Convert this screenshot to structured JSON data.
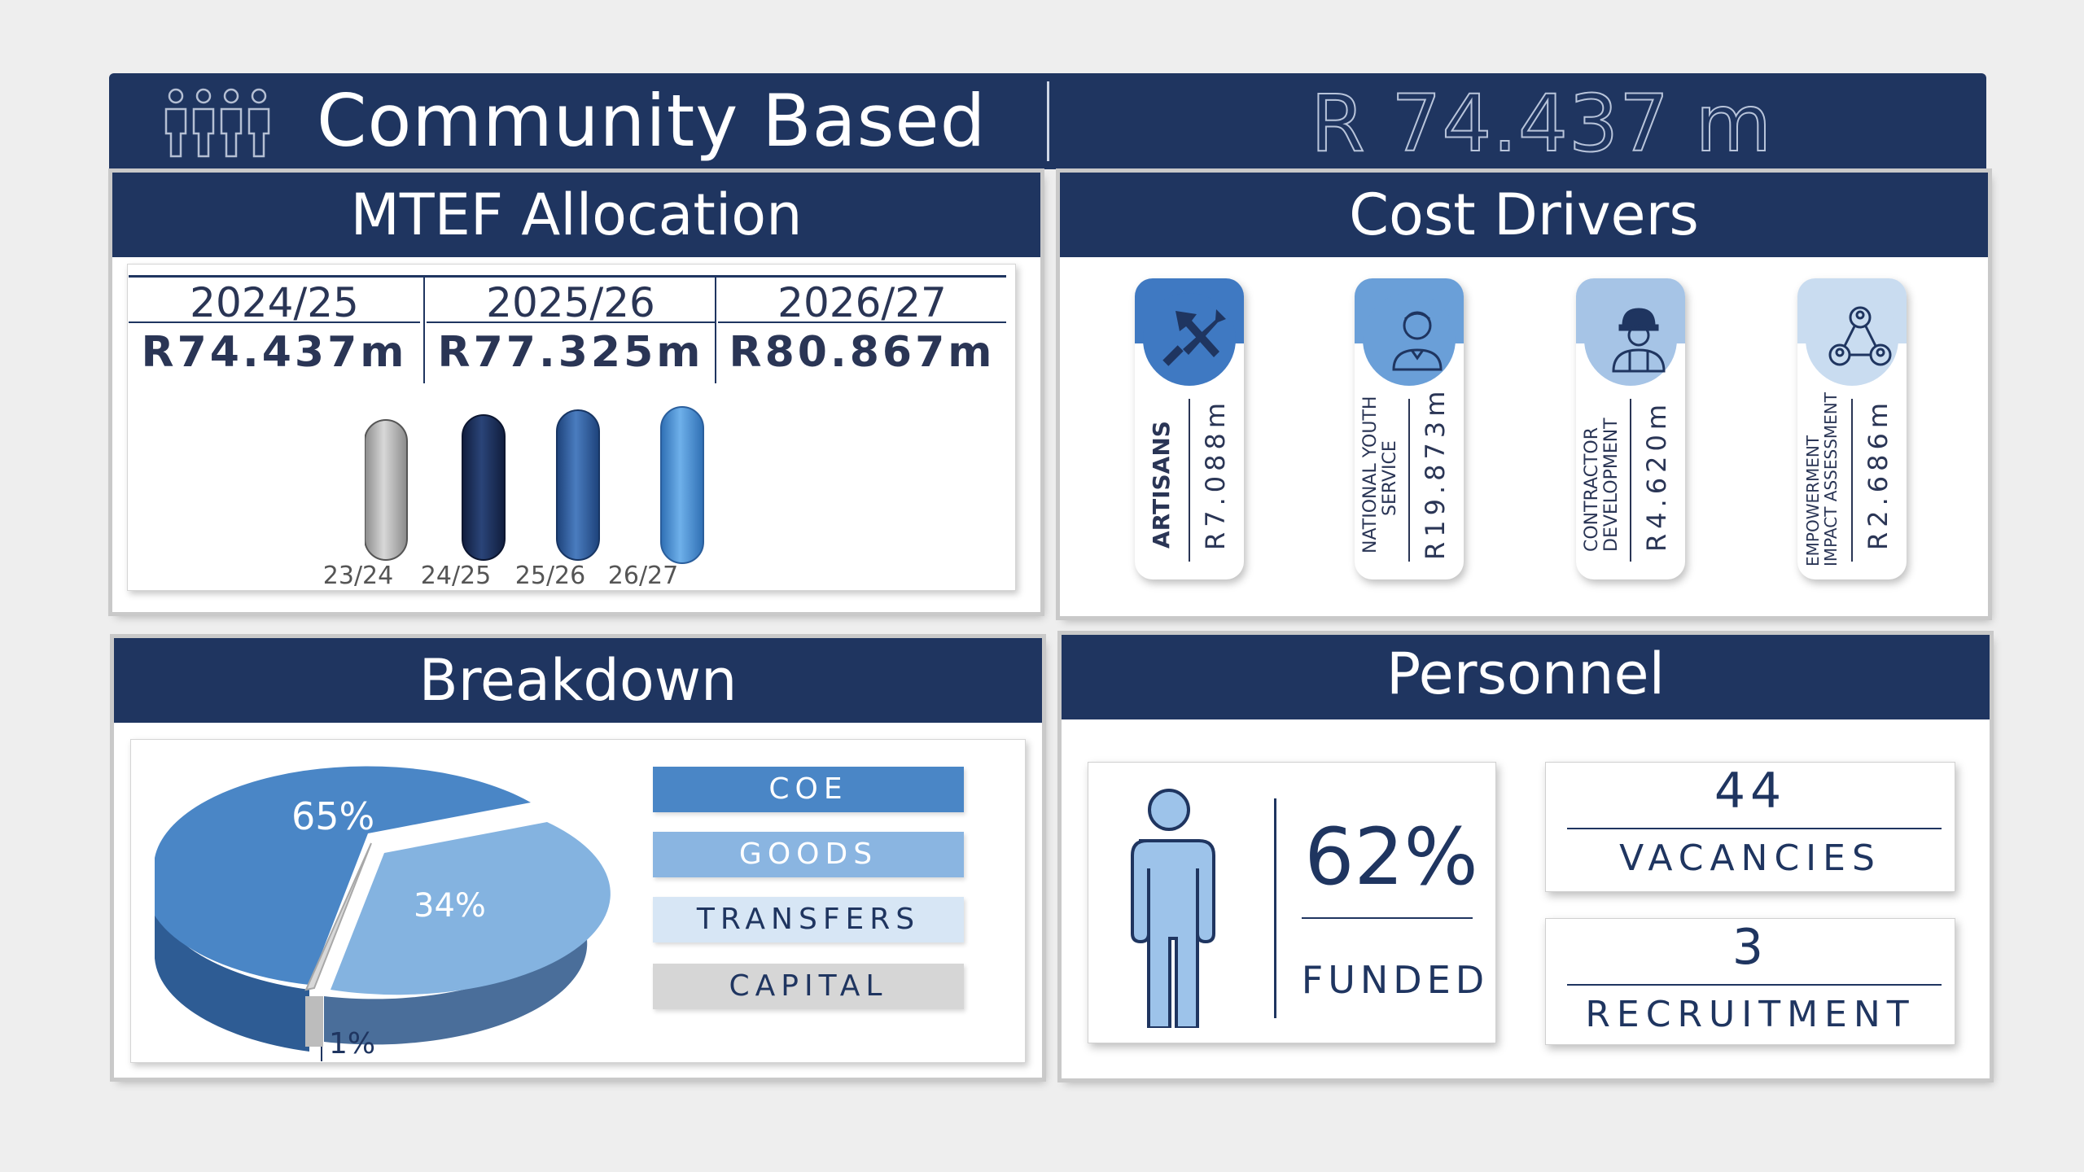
{
  "header": {
    "title": "Community Based",
    "total": "R 74.437 m",
    "icon": "people-group-icon"
  },
  "mtef": {
    "title": "MTEF Allocation",
    "columns": [
      {
        "year": "2024/25",
        "amount": "R74.437m"
      },
      {
        "year": "2025/26",
        "amount": "R77.325m"
      },
      {
        "year": "2026/27",
        "amount": "R80.867m"
      }
    ],
    "pills": [
      {
        "label": "23/24",
        "color": "#a9a9a9"
      },
      {
        "label": "24/25",
        "color": "#1c2f5a"
      },
      {
        "label": "25/26",
        "color": "#2f5d9c"
      },
      {
        "label": "26/27",
        "color": "#4a8fd3"
      }
    ]
  },
  "cost_drivers": {
    "title": "Cost Drivers",
    "items": [
      {
        "name": "ARTISANS",
        "amount": "R7.088m",
        "icon": "hammer-icon",
        "color": "#3f79c2"
      },
      {
        "name_line1": "NATIONAL YOUTH",
        "name_line2": "SERVICE",
        "amount": "R19.873m",
        "icon": "youth-person-icon",
        "color": "#6a9fd8"
      },
      {
        "name_line1": "CONTRACTOR",
        "name_line2": "DEVELOPMENT",
        "amount": "R4.620m",
        "icon": "construction-worker-icon",
        "color": "#a6c4e6"
      },
      {
        "name_line1": "EMPOWERMENT",
        "name_line2": "IMPACT ASSESSMENT",
        "amount": "R2.686m",
        "icon": "network-people-icon",
        "color": "#c9dcf0"
      }
    ]
  },
  "breakdown": {
    "title": "Breakdown",
    "slices": [
      {
        "label": "65%",
        "value": 65,
        "color": "#4a86c6"
      },
      {
        "label": "34%",
        "value": 34,
        "color": "#84b3e0"
      },
      {
        "label": "1%",
        "value": 1,
        "color": "#d8d8d8"
      }
    ],
    "legend": [
      {
        "label": "COE",
        "bg": "#4a86c6",
        "fg": "#ffffff"
      },
      {
        "label": "GOODS",
        "bg": "#8ab5e1",
        "fg": "#ffffff"
      },
      {
        "label": "TRANSFERS",
        "bg": "#d7e6f5",
        "fg": "#1f3560"
      },
      {
        "label": "CAPITAL",
        "bg": "#d6d6d6",
        "fg": "#1f3560"
      }
    ]
  },
  "personnel": {
    "title": "Personnel",
    "funded_value": "62%",
    "funded_label": "FUNDED",
    "vacancies_value": "44",
    "vacancies_label": "VACANCIES",
    "recruitment_value": "3",
    "recruitment_label": "RECRUITMENT"
  }
}
